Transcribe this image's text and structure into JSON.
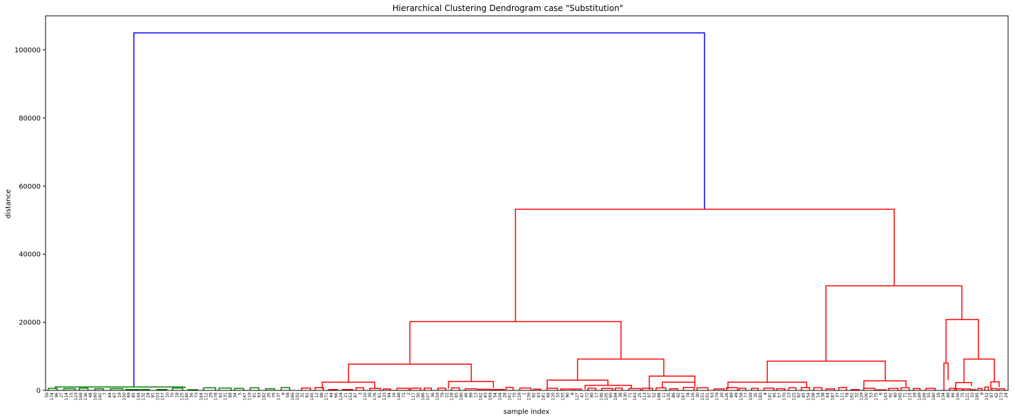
{
  "chart_data": {
    "type": "dendrogram",
    "title": "Hierarchical Clustering Dendrogram case \"Substitution\"",
    "xlabel": "sample index",
    "ylabel": "distance",
    "ylim": [
      0,
      110000
    ],
    "yticks": [
      0,
      20000,
      40000,
      60000,
      80000,
      100000
    ],
    "grid": false,
    "colors": {
      "root": "#0000ff",
      "cluster_green": "#008000",
      "cluster_red": "#ff0000",
      "axis": "#000000"
    },
    "major_merges": [
      {
        "name": "root",
        "height": 105000,
        "color": "#0000ff",
        "children": [
          "green_cluster",
          "red_cluster"
        ]
      },
      {
        "name": "green_cluster",
        "height": 1000,
        "color": "#008000"
      },
      {
        "name": "red_cluster",
        "height": 53200,
        "color": "#ff0000",
        "children": [
          "red_left",
          "red_right"
        ]
      },
      {
        "name": "red_left",
        "height": 20200,
        "color": "#ff0000",
        "children": [
          "red_left_a",
          "red_left_b"
        ]
      },
      {
        "name": "red_left_a",
        "height": 7700,
        "color": "#ff0000"
      },
      {
        "name": "red_left_b",
        "height": 9200,
        "color": "#ff0000"
      },
      {
        "name": "red_right",
        "height": 30700,
        "color": "#ff0000",
        "children": [
          "red_right_a",
          "red_right_b"
        ]
      },
      {
        "name": "red_right_a",
        "height": 8600,
        "color": "#ff0000"
      },
      {
        "name": "red_right_b",
        "height": 20800,
        "color": "#ff0000"
      }
    ],
    "leaf_labels": [
      "59",
      "174",
      "96",
      "27",
      "114",
      "15",
      "123",
      "168",
      "136",
      "48",
      "160",
      "191",
      "7",
      "84",
      "67",
      "19",
      "150",
      "69",
      "85",
      "144",
      "132",
      "24",
      "91",
      "103",
      "157",
      "10",
      "70",
      "18",
      "125",
      "140",
      "56",
      "73",
      "164",
      "112",
      "29",
      "178",
      "62",
      "131",
      "88",
      "34",
      "5",
      "147",
      "119",
      "41",
      "93",
      "182",
      "26",
      "76",
      "137",
      "9",
      "58",
      "166",
      "102",
      "31",
      "81",
      "145",
      "12",
      "98",
      "171",
      "44",
      "66",
      "124",
      "21",
      "153",
      "87",
      "3",
      "110",
      "39",
      "176",
      "61",
      "133",
      "94",
      "16",
      "148",
      "72",
      "2",
      "117",
      "50",
      "186",
      "107",
      "36",
      "159",
      "79",
      "22",
      "128",
      "65",
      "190",
      "46",
      "99",
      "13",
      "142",
      "83",
      "169",
      "54",
      "104",
      "28",
      "161",
      "75",
      "118",
      "1",
      "139",
      "92",
      "43",
      "181",
      "68",
      "120",
      "33",
      "155",
      "90",
      "8",
      "127",
      "47",
      "172",
      "80",
      "17",
      "146",
      "105",
      "60",
      "184",
      "38",
      "130",
      "71",
      "163",
      "25",
      "113",
      "97",
      "52",
      "188",
      "11",
      "135",
      "86",
      "42",
      "167",
      "74",
      "116",
      "30",
      "151",
      "101",
      "63",
      "179",
      "20",
      "126",
      "89",
      "49",
      "158",
      "77",
      "109",
      "35",
      "183",
      "4",
      "141",
      "95",
      "57",
      "170",
      "23",
      "122",
      "82",
      "45",
      "154",
      "108",
      "14",
      "138",
      "64",
      "187",
      "37",
      "111",
      "78",
      "162",
      "32",
      "129",
      "100",
      "53",
      "175",
      "6",
      "143",
      "92",
      "40",
      "165",
      "71",
      "115",
      "28",
      "149",
      "106",
      "55",
      "180",
      "19",
      "134",
      "88",
      "46",
      "156",
      "75",
      "121",
      "33",
      "185",
      "9",
      "152",
      "97",
      "62",
      "173",
      "24"
    ]
  }
}
